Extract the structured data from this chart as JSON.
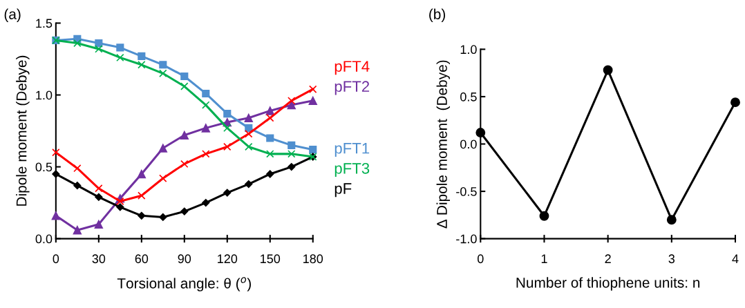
{
  "chart_data": [
    {
      "type": "line",
      "title": "(a)",
      "xlabel": "Torsional angle: θ ($^{o}$)",
      "ylabel": "Dipole moment (Debye)",
      "x": [
        0,
        15,
        30,
        45,
        60,
        75,
        90,
        105,
        120,
        135,
        150,
        165,
        180
      ],
      "xlim": [
        0,
        180
      ],
      "xticks": [
        0,
        30,
        60,
        90,
        120,
        150,
        180
      ],
      "ylim": [
        0,
        1.5
      ],
      "yticks": [
        {
          "value": 0,
          "label": "0.0"
        },
        {
          "value": 0.5,
          "label": "0.5"
        },
        {
          "value": 1.0,
          "label": "1.0"
        },
        {
          "value": 1.5,
          "label": "1.5"
        }
      ],
      "grid": false,
      "legend": false,
      "series": [
        {
          "name": "pFT4",
          "color": "#ff0000",
          "marker": "cross",
          "values": [
            0.6,
            0.49,
            0.35,
            0.26,
            0.3,
            0.42,
            0.52,
            0.59,
            0.64,
            0.73,
            0.84,
            0.96,
            1.04
          ]
        },
        {
          "name": "pFT2",
          "color": "#7030a0",
          "marker": "triangle",
          "values": [
            0.16,
            0.06,
            0.1,
            0.28,
            0.45,
            0.63,
            0.72,
            0.77,
            0.81,
            0.84,
            0.89,
            0.93,
            0.96
          ]
        },
        {
          "name": "pFT1",
          "color": "#4f8fcf",
          "marker": "square",
          "values": [
            1.38,
            1.39,
            1.36,
            1.33,
            1.27,
            1.21,
            1.13,
            1.01,
            0.87,
            0.77,
            0.7,
            0.65,
            0.62
          ]
        },
        {
          "name": "pFT3",
          "color": "#00b050",
          "marker": "cross",
          "values": [
            1.38,
            1.36,
            1.32,
            1.26,
            1.21,
            1.15,
            1.06,
            0.93,
            0.77,
            0.64,
            0.59,
            0.59,
            0.57
          ]
        },
        {
          "name": "pF",
          "color": "#000000",
          "marker": "diamond",
          "values": [
            0.45,
            0.37,
            0.29,
            0.22,
            0.16,
            0.15,
            0.19,
            0.25,
            0.32,
            0.38,
            0.45,
            0.5,
            0.57
          ]
        }
      ]
    },
    {
      "type": "line",
      "title": "(b)",
      "xlabel": "Number of thiophene units: n",
      "ylabel": "∆ Dipole moment  (Debye)",
      "x": [
        0,
        1,
        2,
        3,
        4
      ],
      "xlim": [
        0,
        4
      ],
      "xticks": [
        0,
        1,
        2,
        3,
        4
      ],
      "ylim": [
        -1.0,
        1.0
      ],
      "yticks": [
        {
          "value": -1.0,
          "label": "-1.0"
        },
        {
          "value": -0.5,
          "label": "-0.5"
        },
        {
          "value": 0.0,
          "label": "0.0"
        },
        {
          "value": 0.5,
          "label": "0.5"
        },
        {
          "value": 1.0,
          "label": "1.0"
        }
      ],
      "grid": false,
      "legend": false,
      "series": [
        {
          "color": "#000000",
          "marker": "circle",
          "values": [
            0.12,
            -0.76,
            0.78,
            -0.8,
            0.44
          ]
        }
      ]
    }
  ]
}
